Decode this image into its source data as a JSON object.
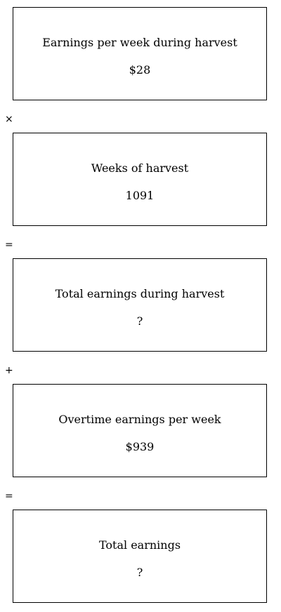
{
  "steps": [
    {
      "label": "Earnings per week during harvest",
      "value": "$28"
    },
    {
      "label": "Weeks of harvest",
      "value": "1091"
    },
    {
      "label": "Total earnings during harvest",
      "value": "?"
    },
    {
      "label": "Overtime earnings per week",
      "value": "$939"
    },
    {
      "label": "Total earnings",
      "value": "?"
    }
  ],
  "operators": [
    "×",
    "=",
    "+",
    "="
  ]
}
